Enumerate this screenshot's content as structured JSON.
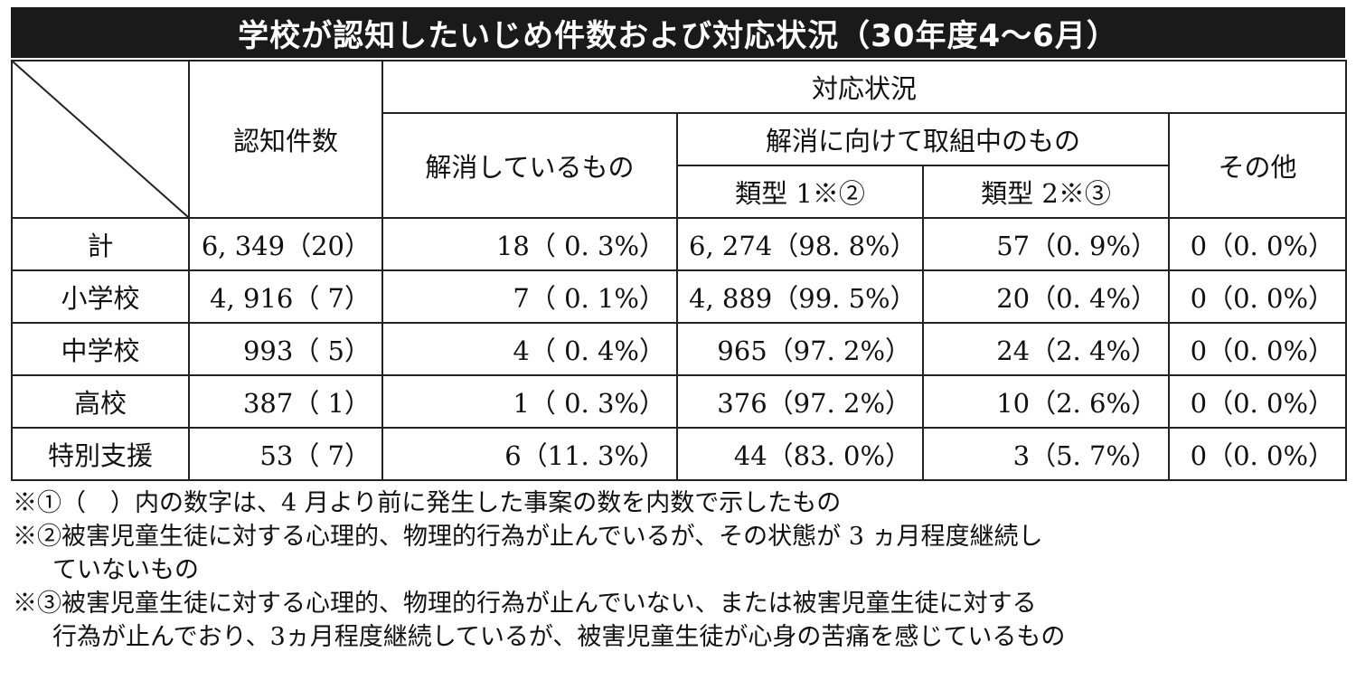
{
  "title": "学校が認知したいじめ件数および対応状況（30年度4〜6月）",
  "headers": {
    "recognized": "認知件数",
    "response_status": "対応状況",
    "resolved": "解消しているもの",
    "in_progress": "解消に向けて取組中のもの",
    "type1": "類型 1※②",
    "type2": "類型 2※③",
    "other": "その他"
  },
  "rows": [
    {
      "label": "計",
      "recognized": "6, 349（20）",
      "resolved": "18（ 0. 3%）",
      "type1": "6, 274（98. 8%）",
      "type2": "57（0. 9%）",
      "other": "0（0. 0%）"
    },
    {
      "label": "小学校",
      "recognized": "4, 916（ 7）",
      "resolved": "7（ 0. 1%）",
      "type1": "4, 889（99. 5%）",
      "type2": "20（0. 4%）",
      "other": "0（0. 0%）"
    },
    {
      "label": "中学校",
      "recognized": "993（ 5）",
      "resolved": "4（ 0. 4%）",
      "type1": "965（97. 2%）",
      "type2": "24（2. 4%）",
      "other": "0（0. 0%）"
    },
    {
      "label": "高校",
      "recognized": "387（ 1）",
      "resolved": "1（ 0. 3%）",
      "type1": "376（97. 2%）",
      "type2": "10（2. 6%）",
      "other": "0（0. 0%）"
    },
    {
      "label": "特別支援",
      "recognized": "53（ 7）",
      "resolved": "6（11. 3%）",
      "type1": "44（83. 0%）",
      "type2": "3（5. 7%）",
      "other": "0（0. 0%）"
    }
  ],
  "notes": {
    "note1": "※①（　）内の数字は、4 月より前に発生した事案の数を内数で示したもの",
    "note2_line1": "※②被害児童生徒に対する心理的、物理的行為が止んでいるが、その状態が 3 ヵ月程度継続し",
    "note2_line2": "ていないもの",
    "note3_line1": "※③被害児童生徒に対する心理的、物理的行為が止んでいない、または被害児童生徒に対する",
    "note3_line2": "行為が止んでおり、3ヵ月程度継続しているが、被害児童生徒が心身の苦痛を感じているもの"
  }
}
